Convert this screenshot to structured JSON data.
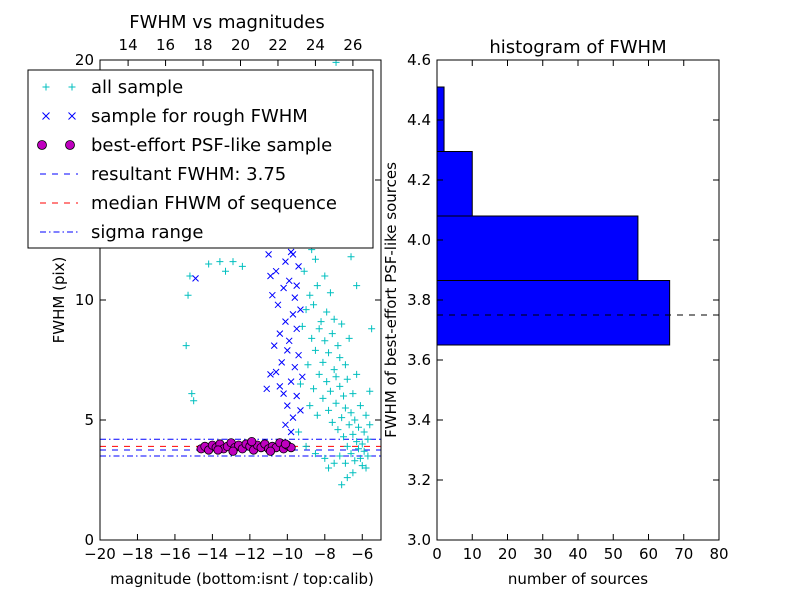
{
  "chart_data": [
    {
      "type": "scatter",
      "title": "FWHM vs magnitudes",
      "xlabel": "magnitude (bottom:isnt / top:calib)",
      "ylabel": "FWHM (pix)",
      "xlim": [
        -20,
        -5
      ],
      "ylim": [
        0,
        20
      ],
      "x_ticks": [
        -20,
        -18,
        -16,
        -14,
        -12,
        -10,
        -8,
        -6
      ],
      "x_tick_labels": [
        "−20",
        "−18",
        "−16",
        "−14",
        "−12",
        "−10",
        "−8",
        "−6"
      ],
      "y_ticks": [
        0,
        5,
        10,
        15,
        20
      ],
      "y_tick_labels": [
        "0",
        "5",
        "10",
        "15",
        "20"
      ],
      "top_axis": {
        "xlim": [
          12.5,
          27.5
        ],
        "ticks": [
          14,
          16,
          18,
          20,
          22,
          24,
          26
        ],
        "tick_labels": [
          "14",
          "16",
          "18",
          "20",
          "22",
          "24",
          "26"
        ]
      },
      "legend": {
        "placement": "top-left",
        "entries": [
          {
            "label": "all sample",
            "marker": "+",
            "color": "#00bfbf"
          },
          {
            "label": "sample for rough FWHM",
            "marker": "x",
            "color": "#0000ff"
          },
          {
            "label": "best-effort PSF-like sample",
            "marker": "o",
            "color": "#bf00bf"
          },
          {
            "label": "resultant FWHM: 3.75",
            "marker": "dashed",
            "color": "#0000ff"
          },
          {
            "label": "median FHWM of sequence",
            "marker": "dashed",
            "color": "#ff0000"
          },
          {
            "label": "sigma range",
            "marker": "dashdot",
            "color": "#0000ff"
          }
        ]
      },
      "hlines": [
        {
          "y": 3.75,
          "style": "dashed",
          "color": "#0000ff"
        },
        {
          "y": 3.9,
          "style": "dashed",
          "color": "#ff0000"
        },
        {
          "y": 4.2,
          "style": "dashdot",
          "color": "#0000ff"
        },
        {
          "y": 3.5,
          "style": "dashdot",
          "color": "#0000ff"
        }
      ],
      "series": [
        {
          "name": "all sample",
          "marker": "+",
          "color": "#00bfbf",
          "points": [
            [
              -15.4,
              8.1
            ],
            [
              -15.3,
              10.2
            ],
            [
              -15.2,
              11.0
            ],
            [
              -15.1,
              6.1
            ],
            [
              -15.0,
              5.8
            ],
            [
              -14.2,
              11.5
            ],
            [
              -13.6,
              11.6
            ],
            [
              -13.3,
              11.2
            ],
            [
              -12.9,
              11.6
            ],
            [
              -12.4,
              11.4
            ],
            [
              -9.4,
              4.5
            ],
            [
              -9.3,
              6.5
            ],
            [
              -9.2,
              8.9
            ],
            [
              -9.2,
              12.8
            ],
            [
              -9.1,
              11.2
            ],
            [
              -9.0,
              9.6
            ],
            [
              -8.9,
              7.3
            ],
            [
              -8.9,
              13.1
            ],
            [
              -8.8,
              10.2
            ],
            [
              -8.8,
              5.6
            ],
            [
              -8.7,
              8.4
            ],
            [
              -8.7,
              12.1
            ],
            [
              -8.6,
              6.3
            ],
            [
              -8.6,
              9.8
            ],
            [
              -8.5,
              11.7
            ],
            [
              -8.5,
              7.9
            ],
            [
              -8.4,
              5.2
            ],
            [
              -8.4,
              10.6
            ],
            [
              -8.3,
              8.8
            ],
            [
              -8.3,
              6.9
            ],
            [
              -8.2,
              12.4
            ],
            [
              -8.2,
              9.1
            ],
            [
              -8.1,
              7.4
            ],
            [
              -8.1,
              5.9
            ],
            [
              -8.0,
              11.0
            ],
            [
              -8.0,
              8.3
            ],
            [
              -7.9,
              6.6
            ],
            [
              -7.9,
              9.5
            ],
            [
              -7.8,
              5.4
            ],
            [
              -7.8,
              7.8
            ],
            [
              -7.7,
              10.3
            ],
            [
              -7.7,
              6.2
            ],
            [
              -7.6,
              8.6
            ],
            [
              -7.6,
              4.9
            ],
            [
              -7.5,
              7.1
            ],
            [
              -7.5,
              9.2
            ],
            [
              -7.4,
              5.7
            ],
            [
              -7.4,
              6.8
            ],
            [
              -7.3,
              8.1
            ],
            [
              -7.3,
              4.6
            ],
            [
              -7.2,
              6.4
            ],
            [
              -7.2,
              7.6
            ],
            [
              -7.1,
              5.1
            ],
            [
              -7.1,
              9.0
            ],
            [
              -7.0,
              6.0
            ],
            [
              -7.0,
              4.3
            ],
            [
              -6.9,
              7.3
            ],
            [
              -6.9,
              5.5
            ],
            [
              -6.8,
              3.9
            ],
            [
              -6.8,
              6.7
            ],
            [
              -6.7,
              4.8
            ],
            [
              -6.7,
              8.4
            ],
            [
              -6.6,
              5.3
            ],
            [
              -6.6,
              3.6
            ],
            [
              -6.5,
              6.1
            ],
            [
              -6.5,
              4.4
            ],
            [
              -6.4,
              3.3
            ],
            [
              -6.4,
              5.0
            ],
            [
              -6.3,
              4.1
            ],
            [
              -6.3,
              6.9
            ],
            [
              -6.2,
              3.8
            ],
            [
              -6.2,
              4.7
            ],
            [
              -6.1,
              3.4
            ],
            [
              -6.1,
              5.6
            ],
            [
              -6.0,
              4.0
            ],
            [
              -6.0,
              3.1
            ],
            [
              -5.9,
              4.5
            ],
            [
              -5.9,
              3.7
            ],
            [
              -5.8,
              5.2
            ],
            [
              -5.8,
              3.0
            ],
            [
              -5.7,
              4.2
            ],
            [
              -5.7,
              3.5
            ],
            [
              -5.6,
              6.2
            ],
            [
              -5.6,
              4.8
            ],
            [
              -5.5,
              8.8
            ],
            [
              -7.1,
              2.3
            ],
            [
              -6.8,
              2.6
            ],
            [
              -6.5,
              2.8
            ],
            [
              -7.5,
              3.2
            ],
            [
              -8.0,
              3.4
            ],
            [
              -8.5,
              3.6
            ],
            [
              -9.0,
              3.9
            ],
            [
              -7.8,
              3.0
            ],
            [
              -7.2,
              3.5
            ],
            [
              -6.9,
              3.2
            ],
            [
              -7.6,
              14.0
            ],
            [
              -7.2,
              12.8
            ],
            [
              -7.4,
              19.9
            ],
            [
              -7.0,
              18.6
            ],
            [
              -6.9,
              16.2
            ],
            [
              -8.3,
              14.6
            ],
            [
              -7.9,
              13.4
            ],
            [
              -6.6,
              11.8
            ],
            [
              -6.3,
              10.6
            ],
            [
              -8.6,
              13.9
            ]
          ]
        },
        {
          "name": "sample for rough FWHM",
          "marker": "x",
          "color": "#0000ff",
          "points": [
            [
              -14.9,
              10.9
            ],
            [
              -11.0,
              11.9
            ],
            [
              -10.9,
              11.0
            ],
            [
              -10.8,
              10.2
            ],
            [
              -10.6,
              11.2
            ],
            [
              -10.5,
              9.8
            ],
            [
              -10.4,
              8.6
            ],
            [
              -10.3,
              7.4
            ],
            [
              -10.3,
              12.4
            ],
            [
              -10.2,
              10.5
            ],
            [
              -10.2,
              6.1
            ],
            [
              -10.1,
              9.1
            ],
            [
              -10.1,
              11.6
            ],
            [
              -10.0,
              7.9
            ],
            [
              -10.0,
              5.6
            ],
            [
              -9.9,
              10.8
            ],
            [
              -9.9,
              8.3
            ],
            [
              -9.8,
              6.6
            ],
            [
              -9.8,
              12.0
            ],
            [
              -9.7,
              9.4
            ],
            [
              -9.7,
              5.1
            ],
            [
              -9.6,
              7.2
            ],
            [
              -9.6,
              10.1
            ],
            [
              -9.5,
              8.8
            ],
            [
              -9.5,
              6.0
            ],
            [
              -9.4,
              11.4
            ],
            [
              -9.4,
              7.7
            ],
            [
              -9.3,
              5.4
            ],
            [
              -9.3,
              9.6
            ],
            [
              -9.2,
              6.8
            ],
            [
              -10.7,
              8.1
            ],
            [
              -10.6,
              7.0
            ],
            [
              -10.4,
              6.4
            ],
            [
              -10.9,
              6.9
            ],
            [
              -11.1,
              6.3
            ],
            [
              -9.9,
              12.6
            ],
            [
              -9.7,
              11.9
            ],
            [
              -9.5,
              10.6
            ],
            [
              -10.1,
              4.8
            ],
            [
              -9.8,
              4.5
            ]
          ]
        },
        {
          "name": "best-effort PSF-like sample",
          "marker": "o",
          "color": "#bf00bf",
          "points": [
            [
              -14.6,
              3.8
            ],
            [
              -14.4,
              3.9
            ],
            [
              -14.2,
              3.75
            ],
            [
              -14.0,
              3.95
            ],
            [
              -13.8,
              3.85
            ],
            [
              -13.6,
              4.0
            ],
            [
              -13.4,
              3.8
            ],
            [
              -13.2,
              3.9
            ],
            [
              -13.0,
              4.05
            ],
            [
              -12.8,
              3.85
            ],
            [
              -12.6,
              3.95
            ],
            [
              -12.4,
              3.8
            ],
            [
              -12.2,
              4.0
            ],
            [
              -12.0,
              3.9
            ],
            [
              -11.8,
              3.75
            ],
            [
              -11.6,
              3.95
            ],
            [
              -11.4,
              3.85
            ],
            [
              -11.2,
              4.0
            ],
            [
              -11.0,
              3.8
            ],
            [
              -10.8,
              3.9
            ],
            [
              -10.6,
              3.85
            ],
            [
              -10.4,
              4.05
            ],
            [
              -10.2,
              3.8
            ],
            [
              -10.0,
              3.95
            ],
            [
              -9.8,
              3.85
            ],
            [
              -13.7,
              3.75
            ],
            [
              -12.9,
              3.7
            ],
            [
              -11.9,
              4.1
            ],
            [
              -10.9,
              3.7
            ],
            [
              -10.1,
              4.0
            ]
          ]
        }
      ]
    },
    {
      "type": "bar",
      "orientation": "horizontal",
      "title": "histogram of FWHM",
      "xlabel": "number of sources",
      "ylabel": "FWHM of best-effort PSF-like sources",
      "xlim": [
        0,
        80
      ],
      "ylim": [
        3.0,
        4.6
      ],
      "x_ticks": [
        0,
        10,
        20,
        30,
        40,
        50,
        60,
        70,
        80
      ],
      "x_tick_labels": [
        "0",
        "10",
        "20",
        "30",
        "40",
        "50",
        "60",
        "70",
        "80"
      ],
      "y_ticks": [
        3.0,
        3.2,
        3.4,
        3.6,
        3.8,
        4.0,
        4.2,
        4.4,
        4.6
      ],
      "y_tick_labels": [
        "3.0",
        "3.2",
        "3.4",
        "3.6",
        "3.8",
        "4.0",
        "4.2",
        "4.4",
        "4.6"
      ],
      "bins": [
        {
          "low": 3.65,
          "high": 3.865,
          "count": 66
        },
        {
          "low": 3.865,
          "high": 4.08,
          "count": 57
        },
        {
          "low": 4.08,
          "high": 4.295,
          "count": 10
        },
        {
          "low": 4.295,
          "high": 4.51,
          "count": 2
        }
      ],
      "bar_color": "#0000ff",
      "hline": {
        "y": 3.75,
        "style": "dashed",
        "color": "#000000"
      }
    }
  ]
}
